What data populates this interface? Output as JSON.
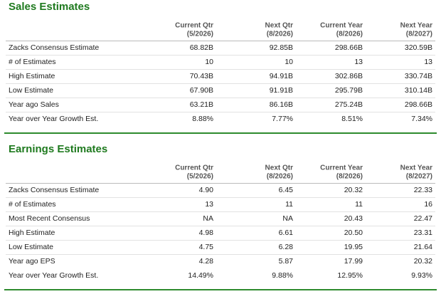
{
  "sections": [
    {
      "title": "Sales Estimates",
      "columns": [
        [
          "Current Qtr",
          "(5/2026)"
        ],
        [
          "Next Qtr",
          "(8/2026)"
        ],
        [
          "Current Year",
          "(8/2026)"
        ],
        [
          "Next Year",
          "(8/2027)"
        ]
      ],
      "rows": [
        [
          "Zacks Consensus Estimate",
          "68.82B",
          "92.85B",
          "298.66B",
          "320.59B"
        ],
        [
          "# of Estimates",
          "10",
          "10",
          "13",
          "13"
        ],
        [
          "High Estimate",
          "70.43B",
          "94.91B",
          "302.86B",
          "330.74B"
        ],
        [
          "Low Estimate",
          "67.90B",
          "91.91B",
          "295.79B",
          "310.14B"
        ],
        [
          "Year ago Sales",
          "63.21B",
          "86.16B",
          "275.24B",
          "298.66B"
        ],
        [
          "Year over Year Growth Est.",
          "8.88%",
          "7.77%",
          "8.51%",
          "7.34%"
        ]
      ]
    },
    {
      "title": "Earnings Estimates",
      "columns": [
        [
          "Current Qtr",
          "(5/2026)"
        ],
        [
          "Next Qtr",
          "(8/2026)"
        ],
        [
          "Current Year",
          "(8/2026)"
        ],
        [
          "Next Year",
          "(8/2027)"
        ]
      ],
      "rows": [
        [
          "Zacks Consensus Estimate",
          "4.90",
          "6.45",
          "20.32",
          "22.33"
        ],
        [
          "# of Estimates",
          "13",
          "11",
          "11",
          "16"
        ],
        [
          "Most Recent Consensus",
          "NA",
          "NA",
          "20.43",
          "22.47"
        ],
        [
          "High Estimate",
          "4.98",
          "6.61",
          "20.50",
          "23.31"
        ],
        [
          "Low Estimate",
          "4.75",
          "6.28",
          "19.95",
          "21.64"
        ],
        [
          "Year ago EPS",
          "4.28",
          "5.87",
          "17.99",
          "20.32"
        ],
        [
          "Year over Year Growth Est.",
          "14.49%",
          "9.88%",
          "12.95%",
          "9.93%"
        ]
      ]
    }
  ]
}
